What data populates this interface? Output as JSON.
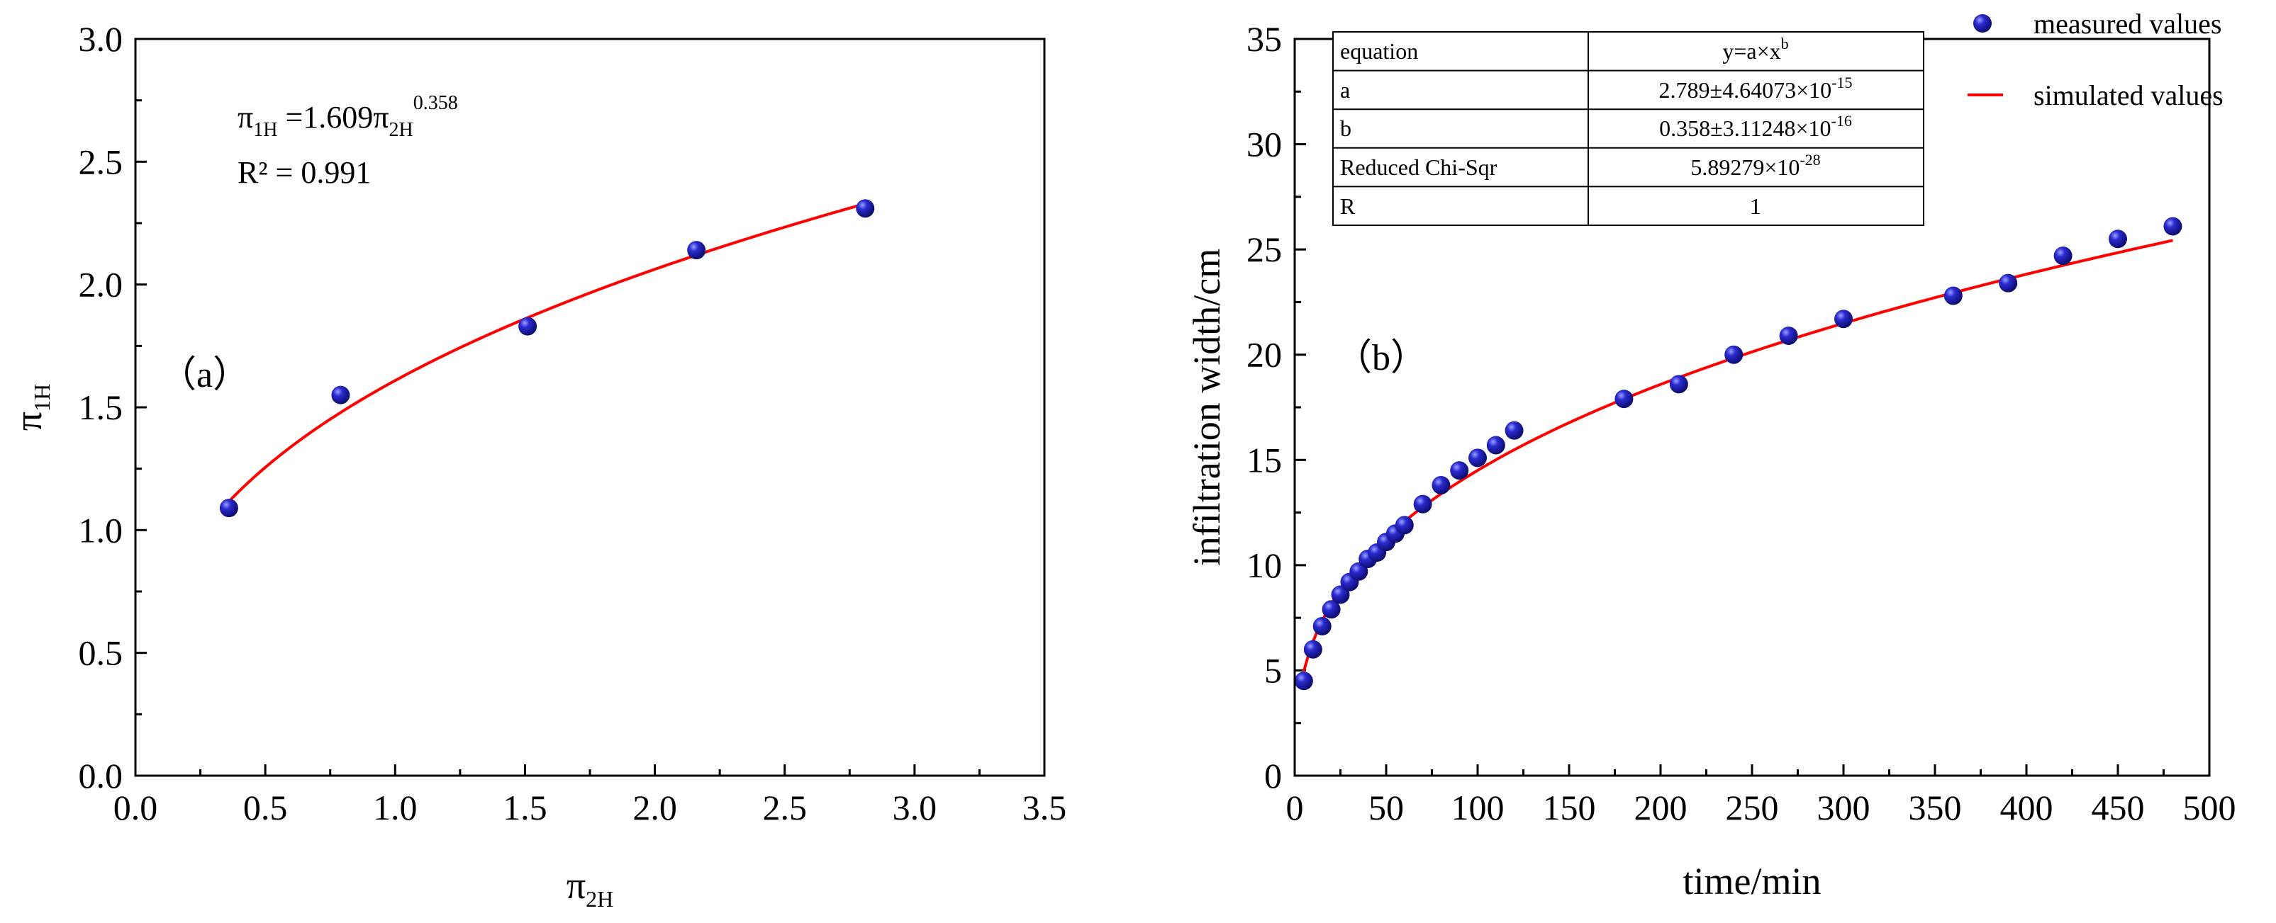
{
  "colors": {
    "marker": "#1f1f9e",
    "fit_line": "#ff0000",
    "axis": "#000000"
  },
  "chart_data": [
    {
      "type": "scatter",
      "panel_label": "（a）",
      "xlabel_main": "π",
      "xlabel_sub": "2H",
      "ylabel_main": "π",
      "ylabel_sub": "1H",
      "xlim": [
        0,
        3.5
      ],
      "ylim": [
        0,
        3.0
      ],
      "xticks": [
        "0.0",
        "0.5",
        "1.0",
        "1.5",
        "2.0",
        "2.5",
        "3.0",
        "3.5"
      ],
      "yticks": [
        "0.0",
        "0.5",
        "1.0",
        "1.5",
        "2.0",
        "2.5",
        "3.0"
      ],
      "series": [
        {
          "name": "measured",
          "x": [
            0.36,
            0.79,
            1.51,
            2.16,
            2.81
          ],
          "y": [
            1.09,
            1.55,
            1.83,
            2.14,
            2.31
          ]
        }
      ],
      "fit": {
        "a": 1.609,
        "b": 0.358,
        "x_range": [
          0.36,
          2.81
        ]
      },
      "equation": {
        "lhs_main": "π",
        "lhs_sub": "1H",
        "eq_coef": " =1.609π",
        "rhs_sub": "2H",
        "exponent": "0.358",
        "r2": "R² = 0.991"
      }
    },
    {
      "type": "scatter",
      "panel_label": "（b）",
      "xlabel": "time/min",
      "ylabel": "infiltration width/cm",
      "xlim": [
        0,
        500
      ],
      "ylim": [
        0,
        35
      ],
      "xticks": [
        "0",
        "50",
        "100",
        "150",
        "200",
        "250",
        "300",
        "350",
        "400",
        "450",
        "500"
      ],
      "yticks": [
        "0",
        "5",
        "10",
        "15",
        "20",
        "25",
        "30",
        "35"
      ],
      "series": [
        {
          "name": "measured values",
          "x": [
            5,
            10,
            15,
            20,
            25,
            30,
            35,
            40,
            45,
            50,
            55,
            60,
            70,
            80,
            90,
            100,
            110,
            120,
            180,
            210,
            240,
            270,
            300,
            360,
            390,
            420,
            450,
            480
          ],
          "y": [
            4.5,
            6.0,
            7.1,
            7.9,
            8.6,
            9.2,
            9.7,
            10.3,
            10.6,
            11.1,
            11.5,
            11.9,
            12.9,
            13.8,
            14.5,
            15.1,
            15.7,
            16.4,
            17.9,
            18.6,
            20.0,
            20.9,
            21.7,
            22.8,
            23.4,
            24.7,
            25.5,
            26.1
          ]
        },
        {
          "name": "simulated values",
          "fit": {
            "a": 2.789,
            "b": 0.358,
            "x_range": [
              5,
              480
            ]
          }
        }
      ],
      "legend": {
        "measured": "measured values",
        "simulated": "simulated values"
      },
      "table": {
        "rows": [
          {
            "label": "equation",
            "value": "y=a×x",
            "sup": "b"
          },
          {
            "label": "a",
            "value": "2.789±4.64073×10",
            "sup": "-15"
          },
          {
            "label": "b",
            "value": "0.358±3.11248×10",
            "sup": "-16"
          },
          {
            "label": "Reduced Chi-Sqr",
            "value": "5.89279×10",
            "sup": "-28"
          },
          {
            "label": "R",
            "value": "1",
            "sup": ""
          }
        ]
      }
    }
  ]
}
